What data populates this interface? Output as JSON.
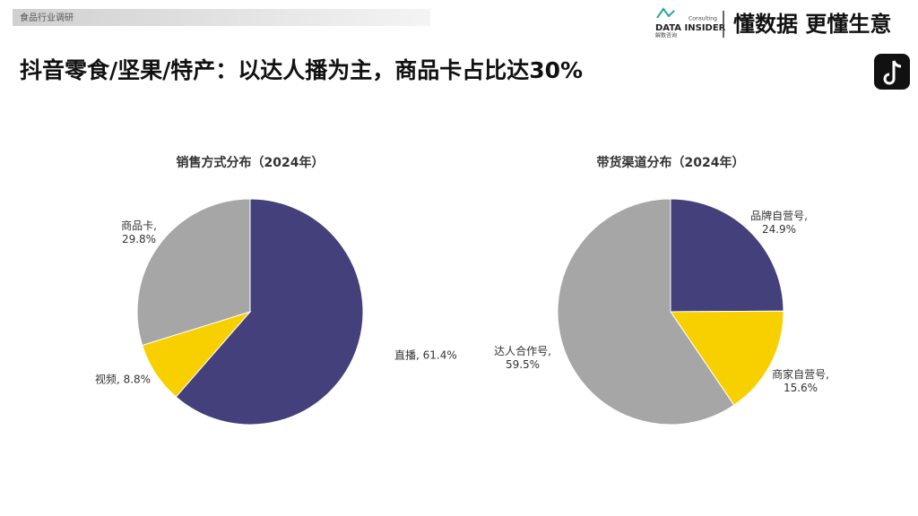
{
  "header": {
    "section": "食品行业调研",
    "brand": "DATA INSIDER",
    "brand_small": "Consulting",
    "brand_cn": "解数咨询",
    "slogan": "懂数据 更懂生意"
  },
  "title": "抖音零食/坚果/特产：以达人播为主，商品卡占比达30%",
  "chart_data": [
    {
      "type": "pie",
      "title": "销售方式分布（2024年）",
      "values": [
        61.4,
        8.8,
        29.8
      ],
      "value_labels": [
        "直播, 61.4%",
        "视频, 8.8%",
        "商品卡,\n29.8%"
      ],
      "colors": [
        "#43407b",
        "#f8d000",
        "#a6a6a6"
      ]
    },
    {
      "type": "pie",
      "title": "带货渠道分布（2024年）",
      "values": [
        24.9,
        15.6,
        59.5
      ],
      "value_labels": [
        "品牌自营号,\n24.9%",
        "商家自营号,\n15.6%",
        "达人合作号,\n59.5%"
      ],
      "colors": [
        "#43407b",
        "#f8d000",
        "#a6a6a6"
      ]
    }
  ]
}
